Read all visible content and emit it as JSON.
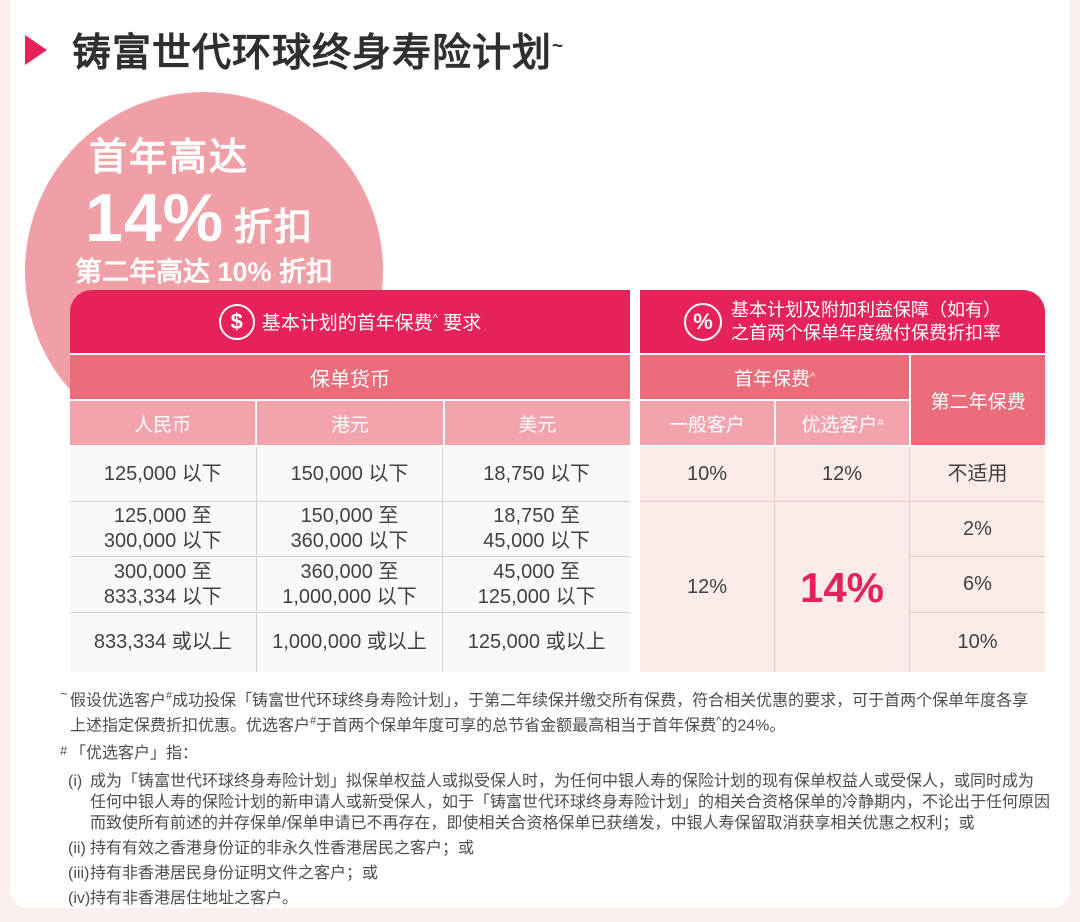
{
  "colors": {
    "page_bg": "#FCF0EE",
    "card_bg": "#FFFFFF",
    "accent_dark": "#E5235A",
    "accent_medium": "#EB6C7A",
    "accent_light": "#F2A3AB",
    "circle_bg": "#F19FA7",
    "left_body_bg": "#F9F9F7",
    "right_body_bg": "#FBECE9",
    "highlight": "#E6215F"
  },
  "title": {
    "text": "铸富世代环球终身寿险计划",
    "sup": "~"
  },
  "badge": {
    "line1": "首年高达",
    "big": "14%",
    "big_suffix": "折扣",
    "line3": "第二年高达 10% 折扣"
  },
  "left_table": {
    "header": {
      "icon": "$",
      "pre": "基本计划的首年保费",
      "sup": "^",
      "post": "要求"
    },
    "subheader": "保单货币",
    "columns": [
      "人民币",
      "港元",
      "美元"
    ],
    "rows": [
      [
        "125,000 以下",
        "150,000 以下",
        "18,750 以下"
      ],
      [
        "125,000 至\n300,000 以下",
        "150,000 至\n360,000 以下",
        "18,750 至\n45,000 以下"
      ],
      [
        "300,000 至\n833,334 以下",
        "360,000 至\n1,000,000 以下",
        "45,000 至\n125,000 以下"
      ],
      [
        "833,334 或以上",
        "1,000,000 或以上",
        "125,000 或以上"
      ]
    ]
  },
  "right_table": {
    "header": {
      "icon": "%",
      "line1": "基本计划及附加利益保障（如有）",
      "line2": "之首两个保单年度缴付保费折扣率"
    },
    "first_year": {
      "label": "首年保费",
      "sup": "^"
    },
    "second_year": "第二年保费",
    "columns": [
      {
        "label": "一般客户",
        "sup": ""
      },
      {
        "label": "优选客户",
        "sup": "#"
      }
    ],
    "row1": {
      "general": "10%",
      "preferred": "12%",
      "second": "不适用"
    },
    "merged": {
      "general": "12%",
      "preferred": "14%"
    },
    "second_year_values": [
      "2%",
      "6%",
      "10%"
    ]
  },
  "footnotes": {
    "fn1": {
      "marker": "~",
      "p1": "假设优选客户",
      "s1": "#",
      "p2": "成功投保「铸富世代环球终身寿险计划」，于第二年续保并缴交所有保费，符合相关优惠的要求，可于首两个保单年度各享\n上述指定保费折扣优惠。优选客户",
      "s2": "#",
      "p3": "于首两个保单年度可享的总节省金额最高相当于首年保费",
      "s3": "^",
      "p4": "的24%。"
    },
    "fn2": {
      "marker": "#",
      "text": "「优选客户」指："
    },
    "items": [
      {
        "marker": "(i)",
        "text": "成为「铸富世代环球终身寿险计划」拟保单权益人或拟受保人时，为任何中银人寿的保险计划的现有保单权益人或受保人，或同时成为\n任何中银人寿的保险计划的新申请人或新受保人，如于「铸富世代环球终身寿险计划」的相关合资格保单的冷静期内，不论出于任何原因\n而致使所有前述的并存保单/保单申请已不再存在，即使相关合资格保单已获缮发，中银人寿保留取消获享相关优惠之权利；或"
      },
      {
        "marker": "(ii)",
        "text": "持有有效之香港身份证的非永久性香港居民之客户；或"
      },
      {
        "marker": "(iii)",
        "text": "持有非香港居民身份证明文件之客户；或"
      },
      {
        "marker": "(iv)",
        "text": "持有非香港居住地址之客户。"
      }
    ]
  }
}
